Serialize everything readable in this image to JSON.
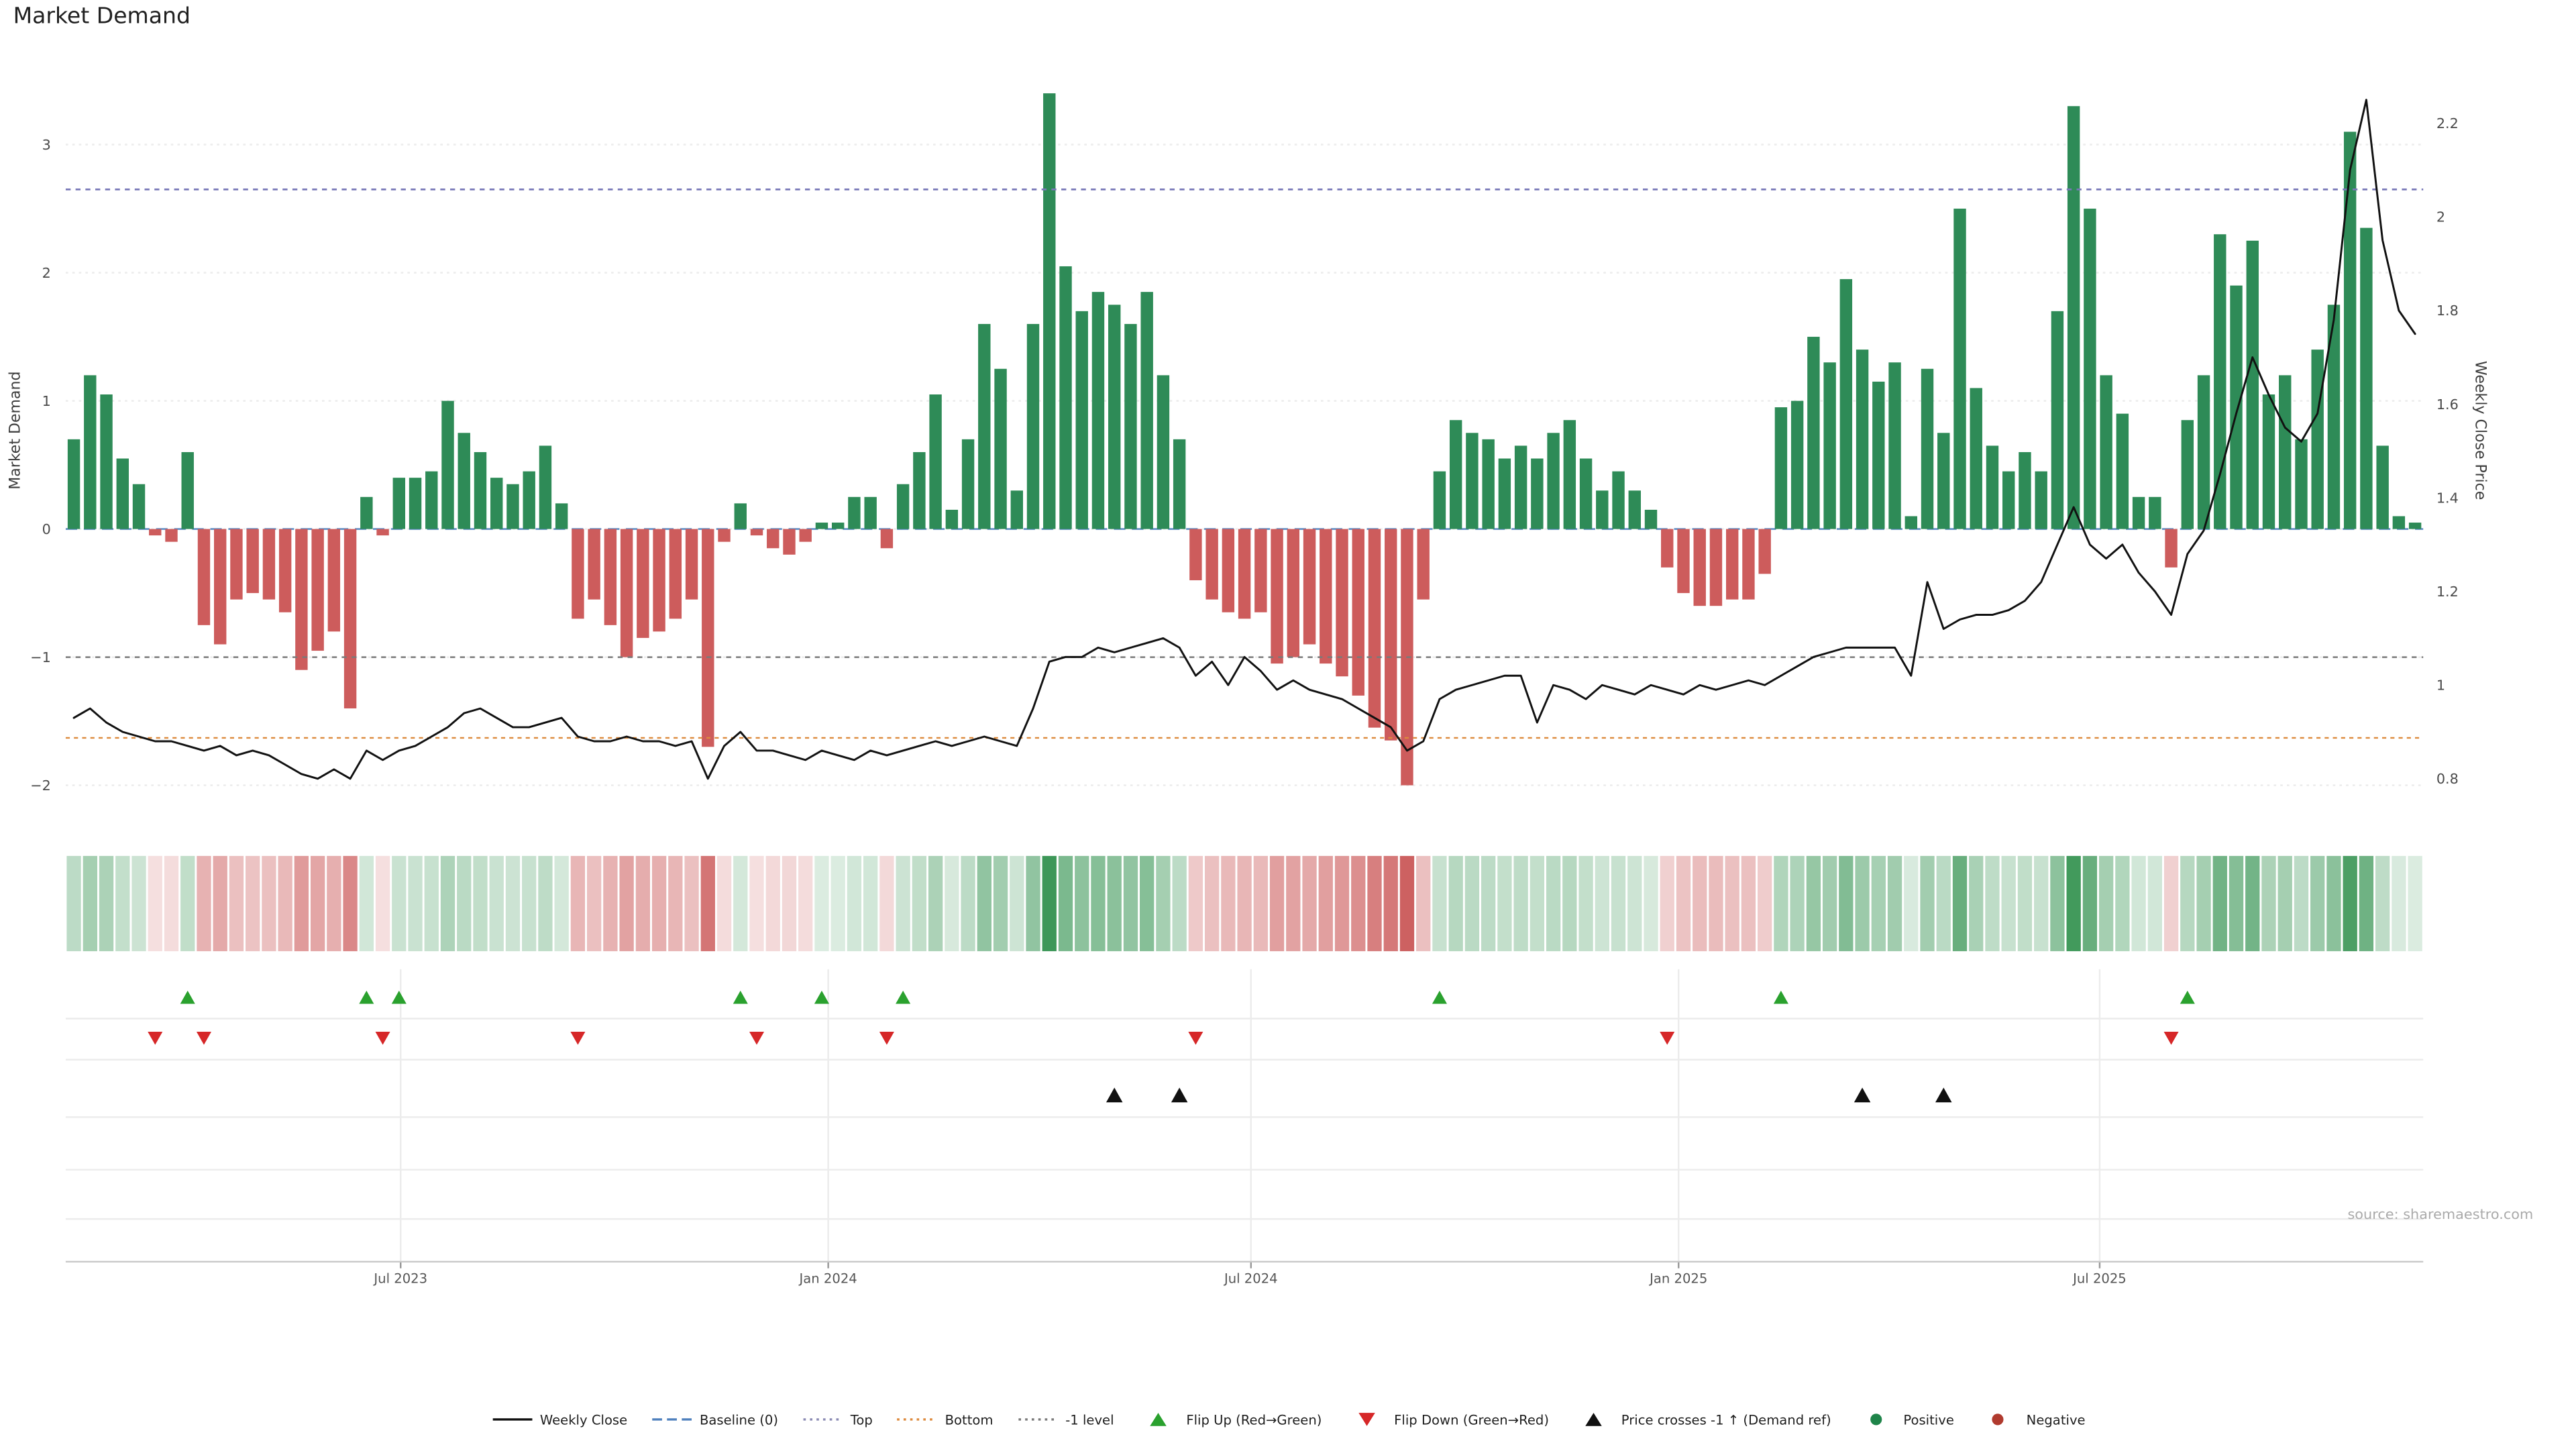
{
  "title": "Market Demand",
  "left_axis": {
    "label": "Market Demand"
  },
  "right_axis": {
    "label": "Weekly Close Price"
  },
  "source": "source: sharemaestro.com",
  "colors": {
    "positive_bar": "#2e8b57",
    "negative_bar": "#cd5c5c",
    "price_line": "#111111",
    "baseline_line": "#4f81bd",
    "top_line": "#7878b8",
    "bottom_line": "#dd8a3d",
    "minus_one_line": "#7a7a7a",
    "flip_up": "#2aa12e",
    "flip_down": "#d62728",
    "price_cross": "#111111",
    "grid": "#ececec",
    "axis_text": "#4a4a4a"
  },
  "chart_data": {
    "type": "combo",
    "title": "Market Demand",
    "series": [
      {
        "name": "Market Demand",
        "type": "bar",
        "axis": "left",
        "values": [
          0.7,
          1.2,
          1.05,
          0.55,
          0.35,
          -0.05,
          -0.1,
          0.6,
          -0.75,
          -0.9,
          -0.55,
          -0.5,
          -0.55,
          -0.65,
          -1.1,
          -0.95,
          -0.8,
          -1.4,
          0.25,
          -0.05,
          0.4,
          0.4,
          0.45,
          1.0,
          0.75,
          0.6,
          0.4,
          0.35,
          0.45,
          0.65,
          0.2,
          -0.7,
          -0.55,
          -0.75,
          -1.0,
          -0.85,
          -0.8,
          -0.7,
          -0.55,
          -1.7,
          -0.1,
          0.2,
          -0.05,
          -0.15,
          -0.2,
          -0.1,
          0.05,
          0.05,
          0.25,
          0.25,
          -0.15,
          0.35,
          0.6,
          1.05,
          0.15,
          0.7,
          1.6,
          1.25,
          0.3,
          1.6,
          3.4,
          2.05,
          1.7,
          1.85,
          1.75,
          1.6,
          1.85,
          1.2,
          0.7,
          -0.4,
          -0.55,
          -0.65,
          -0.7,
          -0.65,
          -1.05,
          -1.0,
          -0.9,
          -1.05,
          -1.15,
          -1.3,
          -1.55,
          -1.65,
          -2.0,
          -0.55,
          0.45,
          0.85,
          0.75,
          0.7,
          0.55,
          0.65,
          0.55,
          0.75,
          0.85,
          0.55,
          0.3,
          0.45,
          0.3,
          0.15,
          -0.3,
          -0.5,
          -0.6,
          -0.6,
          -0.55,
          -0.55,
          -0.35,
          0.95,
          1.0,
          1.5,
          1.3,
          1.95,
          1.4,
          1.15,
          1.3,
          0.1,
          1.25,
          0.75,
          2.5,
          1.1,
          0.65,
          0.45,
          0.6,
          0.45,
          1.7,
          3.3,
          2.5,
          1.2,
          0.9,
          0.25,
          0.25,
          -0.3,
          0.85,
          1.2,
          2.3,
          1.9,
          2.25,
          1.05,
          1.2,
          0.7,
          1.4,
          1.75,
          3.1,
          2.35,
          0.65,
          0.1,
          0.05
        ]
      },
      {
        "name": "Weekly Close",
        "type": "line",
        "axis": "right",
        "values": [
          0.93,
          0.95,
          0.92,
          0.9,
          0.89,
          0.88,
          0.88,
          0.87,
          0.86,
          0.87,
          0.85,
          0.86,
          0.85,
          0.83,
          0.81,
          0.8,
          0.82,
          0.8,
          0.86,
          0.84,
          0.86,
          0.87,
          0.89,
          0.91,
          0.94,
          0.95,
          0.93,
          0.91,
          0.91,
          0.92,
          0.93,
          0.89,
          0.88,
          0.88,
          0.89,
          0.88,
          0.88,
          0.87,
          0.88,
          0.8,
          0.87,
          0.9,
          0.86,
          0.86,
          0.85,
          0.84,
          0.86,
          0.85,
          0.84,
          0.86,
          0.85,
          0.86,
          0.87,
          0.88,
          0.87,
          0.88,
          0.89,
          0.88,
          0.87,
          0.95,
          1.05,
          1.06,
          1.06,
          1.08,
          1.07,
          1.08,
          1.09,
          1.1,
          1.08,
          1.02,
          1.05,
          1.0,
          1.06,
          1.03,
          0.99,
          1.01,
          0.99,
          0.98,
          0.97,
          0.95,
          0.93,
          0.91,
          0.86,
          0.88,
          0.97,
          0.99,
          1.0,
          1.01,
          1.02,
          1.02,
          0.92,
          1.0,
          0.99,
          0.97,
          1.0,
          0.99,
          0.98,
          1.0,
          0.99,
          0.98,
          1.0,
          0.99,
          1.0,
          1.01,
          1.0,
          1.02,
          1.04,
          1.06,
          1.07,
          1.08,
          1.08,
          1.08,
          1.08,
          1.02,
          1.22,
          1.12,
          1.14,
          1.15,
          1.15,
          1.16,
          1.18,
          1.22,
          1.3,
          1.38,
          1.3,
          1.27,
          1.3,
          1.24,
          1.2,
          1.15,
          1.28,
          1.33,
          1.45,
          1.58,
          1.7,
          1.62,
          1.55,
          1.52,
          1.58,
          1.78,
          2.1,
          2.25,
          1.95,
          1.8,
          1.75
        ]
      }
    ],
    "left_ticks": {
      "values": [
        3,
        2,
        1,
        0,
        -1,
        -2
      ],
      "labels": [
        "3",
        "2",
        "1",
        "0",
        "−1",
        "−2"
      ],
      "ylim": [
        -2.15,
        3.74
      ]
    },
    "right_ticks": {
      "values": [
        2.2,
        2.0,
        1.8,
        1.6,
        1.4,
        1.2,
        1.0,
        0.8
      ],
      "labels": [
        "2.2",
        "2",
        "1.8",
        "1.6",
        "1.4",
        "1.2",
        "1",
        "0.8"
      ],
      "ylim": [
        0.75,
        2.3
      ]
    },
    "x_ticks": [
      {
        "label": "Jul 2023",
        "pos": 20.1
      },
      {
        "label": "Jan 2024",
        "pos": 46.4
      },
      {
        "label": "Jul 2024",
        "pos": 72.4
      },
      {
        "label": "Jan 2025",
        "pos": 98.7
      },
      {
        "label": "Jul 2025",
        "pos": 124.6
      }
    ],
    "ref_lines": {
      "baseline": 0,
      "top": 2.65,
      "bottom": -1.63,
      "minus_one": -1
    },
    "markers": {
      "flip_up": [
        7,
        18,
        20,
        41,
        46,
        51,
        84,
        105,
        130
      ],
      "flip_down": [
        5,
        8,
        19,
        31,
        42,
        50,
        69,
        98,
        129
      ],
      "price_cross": [
        64,
        68,
        110,
        115
      ]
    },
    "heatmap": {
      "source": "demand_values",
      "positive_color": "#2e8b57",
      "negative_color": "#cd5c5c"
    },
    "grid": true,
    "legend_position": "bottom"
  },
  "legend": {
    "items": [
      {
        "label": "Weekly Close",
        "symbol": "line",
        "color": "#111111"
      },
      {
        "label": "Baseline (0)",
        "symbol": "dash",
        "color": "#4f81bd"
      },
      {
        "label": "Top",
        "symbol": "dots",
        "color": "#8b8bb4"
      },
      {
        "label": "Bottom",
        "symbol": "dots",
        "color": "#dd8a3d"
      },
      {
        "label": "-1 level",
        "symbol": "dots",
        "color": "#7a7a7a"
      },
      {
        "label": "Flip Up (Red→Green)",
        "symbol": "tri-up",
        "color": "#2aa12e"
      },
      {
        "label": "Flip Down (Green→Red)",
        "symbol": "tri-down",
        "color": "#d62728"
      },
      {
        "label": "Price crosses -1 ↑ (Demand ref)",
        "symbol": "tri-up",
        "color": "#111111"
      },
      {
        "label": "Positive",
        "symbol": "circle",
        "color": "#1e8449"
      },
      {
        "label": "Negative",
        "symbol": "circle",
        "color": "#b03a2e"
      }
    ]
  }
}
